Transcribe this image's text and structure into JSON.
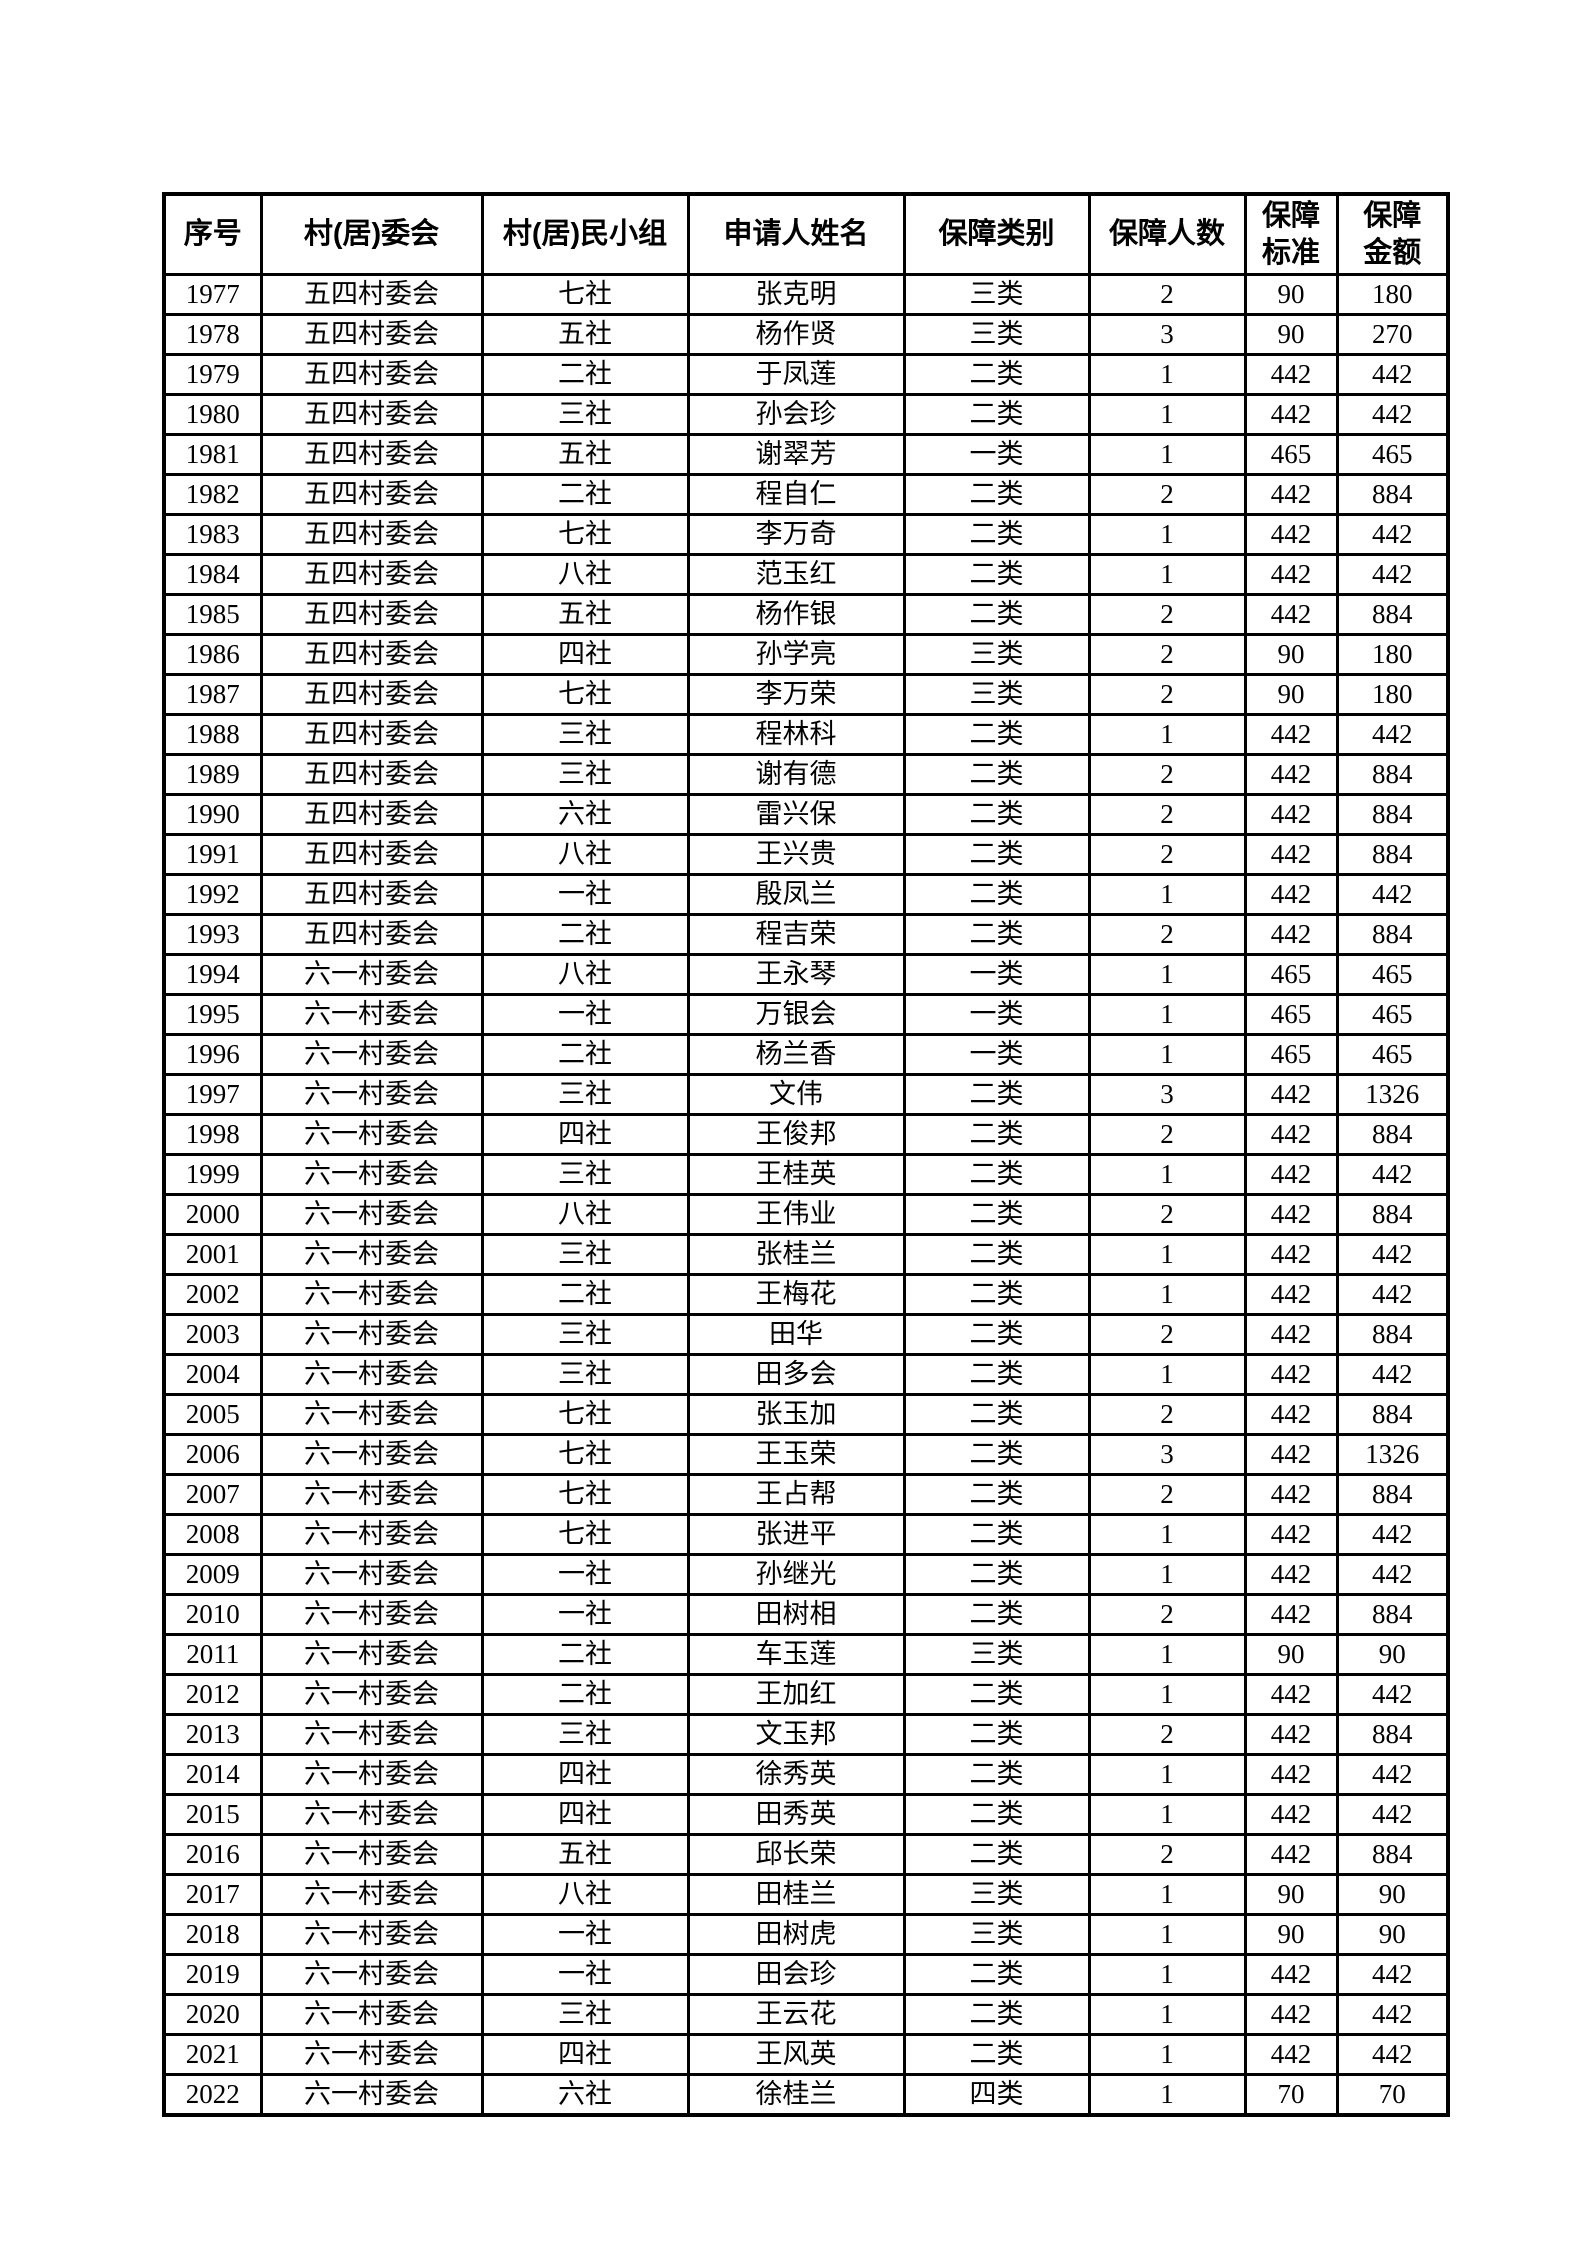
{
  "page": {
    "background": "#ffffff",
    "text_color": "#000000",
    "border_color": "#000000"
  },
  "table": {
    "columns": [
      {
        "key": "serial",
        "label": "序号"
      },
      {
        "key": "committee",
        "label": "村(居)委会"
      },
      {
        "key": "group",
        "label": "村(居)民小组"
      },
      {
        "key": "applicant",
        "label": "申请人姓名"
      },
      {
        "key": "category",
        "label": "保障类别"
      },
      {
        "key": "people",
        "label": "保障人数"
      },
      {
        "key": "standard",
        "label": "保障\n标准"
      },
      {
        "key": "amount",
        "label": "保障\n金额"
      }
    ],
    "rows": [
      [
        1977,
        "五四村委会",
        "七社",
        "张克明",
        "三类",
        2,
        90,
        180
      ],
      [
        1978,
        "五四村委会",
        "五社",
        "杨作贤",
        "三类",
        3,
        90,
        270
      ],
      [
        1979,
        "五四村委会",
        "二社",
        "于凤莲",
        "二类",
        1,
        442,
        442
      ],
      [
        1980,
        "五四村委会",
        "三社",
        "孙会珍",
        "二类",
        1,
        442,
        442
      ],
      [
        1981,
        "五四村委会",
        "五社",
        "谢翠芳",
        "一类",
        1,
        465,
        465
      ],
      [
        1982,
        "五四村委会",
        "二社",
        "程自仁",
        "二类",
        2,
        442,
        884
      ],
      [
        1983,
        "五四村委会",
        "七社",
        "李万奇",
        "二类",
        1,
        442,
        442
      ],
      [
        1984,
        "五四村委会",
        "八社",
        "范玉红",
        "二类",
        1,
        442,
        442
      ],
      [
        1985,
        "五四村委会",
        "五社",
        "杨作银",
        "二类",
        2,
        442,
        884
      ],
      [
        1986,
        "五四村委会",
        "四社",
        "孙学亮",
        "三类",
        2,
        90,
        180
      ],
      [
        1987,
        "五四村委会",
        "七社",
        "李万荣",
        "三类",
        2,
        90,
        180
      ],
      [
        1988,
        "五四村委会",
        "三社",
        "程林科",
        "二类",
        1,
        442,
        442
      ],
      [
        1989,
        "五四村委会",
        "三社",
        "谢有德",
        "二类",
        2,
        442,
        884
      ],
      [
        1990,
        "五四村委会",
        "六社",
        "雷兴保",
        "二类",
        2,
        442,
        884
      ],
      [
        1991,
        "五四村委会",
        "八社",
        "王兴贵",
        "二类",
        2,
        442,
        884
      ],
      [
        1992,
        "五四村委会",
        "一社",
        "殷凤兰",
        "二类",
        1,
        442,
        442
      ],
      [
        1993,
        "五四村委会",
        "二社",
        "程吉荣",
        "二类",
        2,
        442,
        884
      ],
      [
        1994,
        "六一村委会",
        "八社",
        "王永琴",
        "一类",
        1,
        465,
        465
      ],
      [
        1995,
        "六一村委会",
        "一社",
        "万银会",
        "一类",
        1,
        465,
        465
      ],
      [
        1996,
        "六一村委会",
        "二社",
        "杨兰香",
        "一类",
        1,
        465,
        465
      ],
      [
        1997,
        "六一村委会",
        "三社",
        "文伟",
        "二类",
        3,
        442,
        1326
      ],
      [
        1998,
        "六一村委会",
        "四社",
        "王俊邦",
        "二类",
        2,
        442,
        884
      ],
      [
        1999,
        "六一村委会",
        "三社",
        "王桂英",
        "二类",
        1,
        442,
        442
      ],
      [
        2000,
        "六一村委会",
        "八社",
        "王伟业",
        "二类",
        2,
        442,
        884
      ],
      [
        2001,
        "六一村委会",
        "三社",
        "张桂兰",
        "二类",
        1,
        442,
        442
      ],
      [
        2002,
        "六一村委会",
        "二社",
        "王梅花",
        "二类",
        1,
        442,
        442
      ],
      [
        2003,
        "六一村委会",
        "三社",
        "田华",
        "二类",
        2,
        442,
        884
      ],
      [
        2004,
        "六一村委会",
        "三社",
        "田多会",
        "二类",
        1,
        442,
        442
      ],
      [
        2005,
        "六一村委会",
        "七社",
        "张玉加",
        "二类",
        2,
        442,
        884
      ],
      [
        2006,
        "六一村委会",
        "七社",
        "王玉荣",
        "二类",
        3,
        442,
        1326
      ],
      [
        2007,
        "六一村委会",
        "七社",
        "王占帮",
        "二类",
        2,
        442,
        884
      ],
      [
        2008,
        "六一村委会",
        "七社",
        "张进平",
        "二类",
        1,
        442,
        442
      ],
      [
        2009,
        "六一村委会",
        "一社",
        "孙继光",
        "二类",
        1,
        442,
        442
      ],
      [
        2010,
        "六一村委会",
        "一社",
        "田树相",
        "二类",
        2,
        442,
        884
      ],
      [
        2011,
        "六一村委会",
        "二社",
        "车玉莲",
        "三类",
        1,
        90,
        90
      ],
      [
        2012,
        "六一村委会",
        "二社",
        "王加红",
        "二类",
        1,
        442,
        442
      ],
      [
        2013,
        "六一村委会",
        "三社",
        "文玉邦",
        "二类",
        2,
        442,
        884
      ],
      [
        2014,
        "六一村委会",
        "四社",
        "徐秀英",
        "二类",
        1,
        442,
        442
      ],
      [
        2015,
        "六一村委会",
        "四社",
        "田秀英",
        "二类",
        1,
        442,
        442
      ],
      [
        2016,
        "六一村委会",
        "五社",
        "邱长荣",
        "二类",
        2,
        442,
        884
      ],
      [
        2017,
        "六一村委会",
        "八社",
        "田桂兰",
        "三类",
        1,
        90,
        90
      ],
      [
        2018,
        "六一村委会",
        "一社",
        "田树虎",
        "三类",
        1,
        90,
        90
      ],
      [
        2019,
        "六一村委会",
        "一社",
        "田会珍",
        "二类",
        1,
        442,
        442
      ],
      [
        2020,
        "六一村委会",
        "三社",
        "王云花",
        "二类",
        1,
        442,
        442
      ],
      [
        2021,
        "六一村委会",
        "四社",
        "王风英",
        "二类",
        1,
        442,
        442
      ],
      [
        2022,
        "六一村委会",
        "六社",
        "徐桂兰",
        "四类",
        1,
        70,
        70
      ]
    ]
  }
}
